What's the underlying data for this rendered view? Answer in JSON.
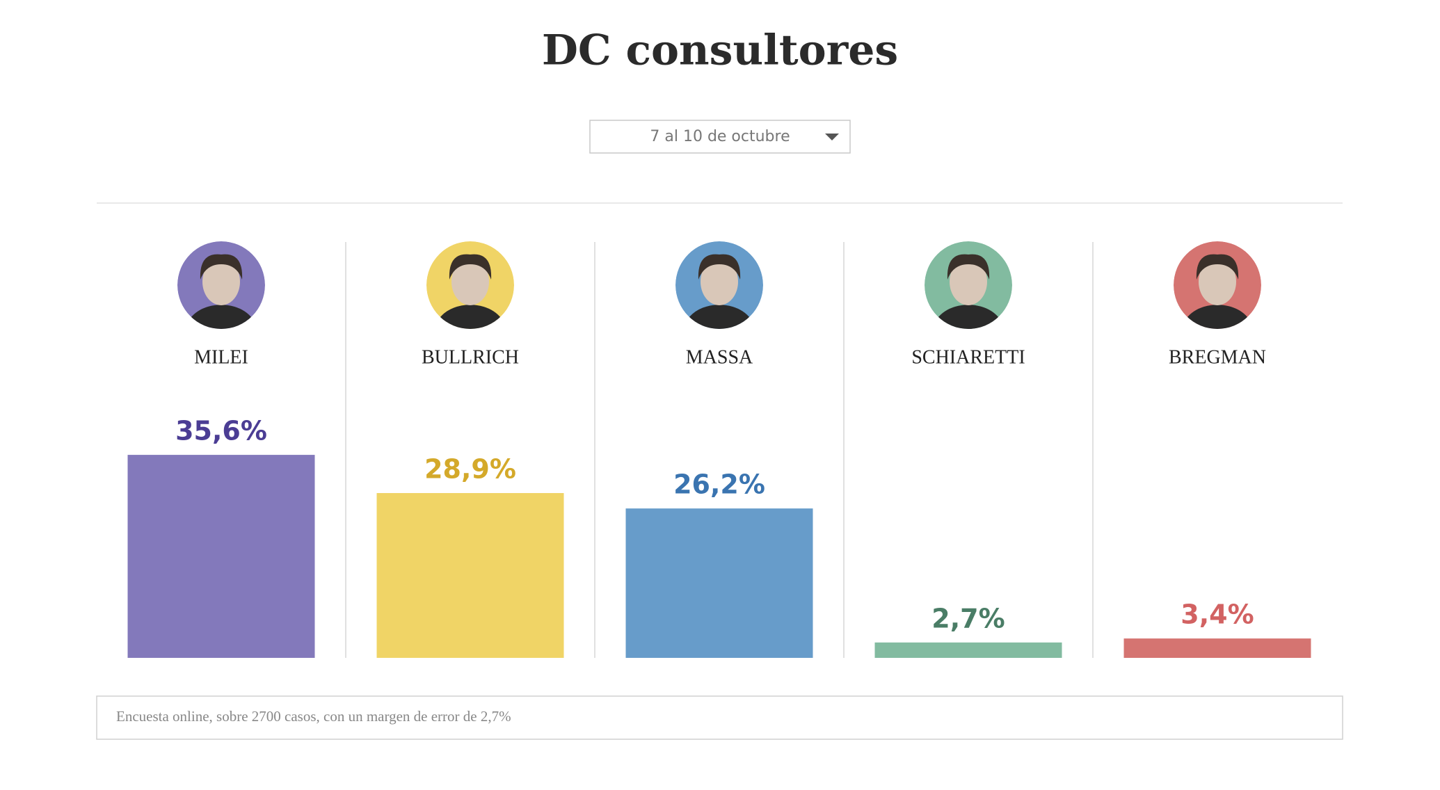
{
  "chart_data": {
    "type": "bar",
    "title": "DC consultores",
    "period": "7 al 10 de octubre",
    "categories": [
      "MILEI",
      "BULLRICH",
      "MASSA",
      "SCHIARETTI",
      "BREGMAN"
    ],
    "values": [
      35.6,
      28.9,
      26.2,
      2.7,
      3.4
    ],
    "value_labels": [
      "35,6%",
      "28,9%",
      "26,2%",
      "2,7%",
      "3,4%"
    ],
    "colors": [
      "#8379bb",
      "#f0d466",
      "#679cca",
      "#82bba0",
      "#d57471"
    ],
    "label_colors": [
      "#4b3d94",
      "#d4a92a",
      "#3a74b0",
      "#4a7d66",
      "#d26262"
    ],
    "note": "Encuesta online, sobre 2700 casos, con un margen de error de 2,7%"
  }
}
